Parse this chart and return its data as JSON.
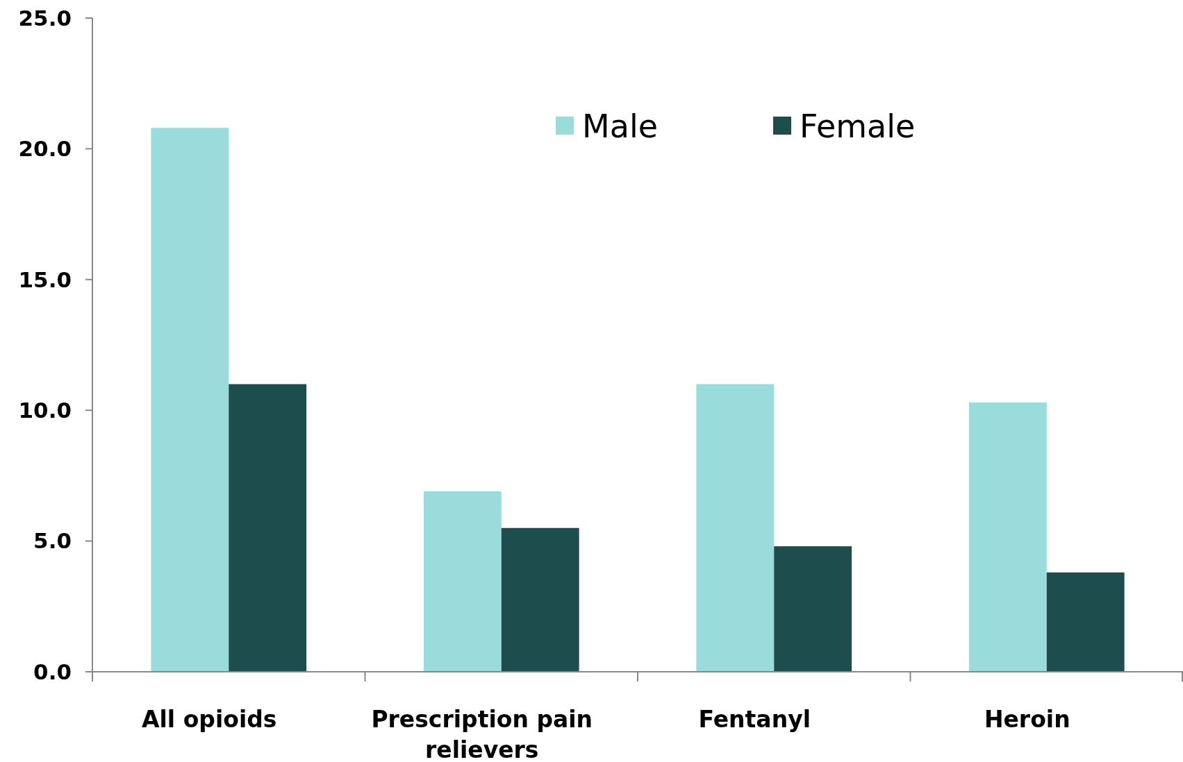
{
  "chart_data": {
    "type": "bar",
    "categories": [
      "All opioids",
      "Prescription pain relievers",
      "Fentanyl",
      "Heroin"
    ],
    "series": [
      {
        "name": "Male",
        "color": "#9adcdc",
        "values": [
          20.8,
          6.9,
          11.0,
          10.3
        ]
      },
      {
        "name": "Female",
        "color": "#1e4d4e",
        "values": [
          11.0,
          5.5,
          4.8,
          3.8
        ]
      }
    ],
    "ylim": [
      0,
      25
    ],
    "yticks": [
      {
        "value": 0,
        "label": "0.0"
      },
      {
        "value": 5,
        "label": "5.0"
      },
      {
        "value": 10,
        "label": "10.0"
      },
      {
        "value": 15,
        "label": "15.0"
      },
      {
        "value": 20,
        "label": "20.0"
      },
      {
        "value": 25,
        "label": "25.0"
      }
    ],
    "grid": false,
    "legend": "top"
  }
}
